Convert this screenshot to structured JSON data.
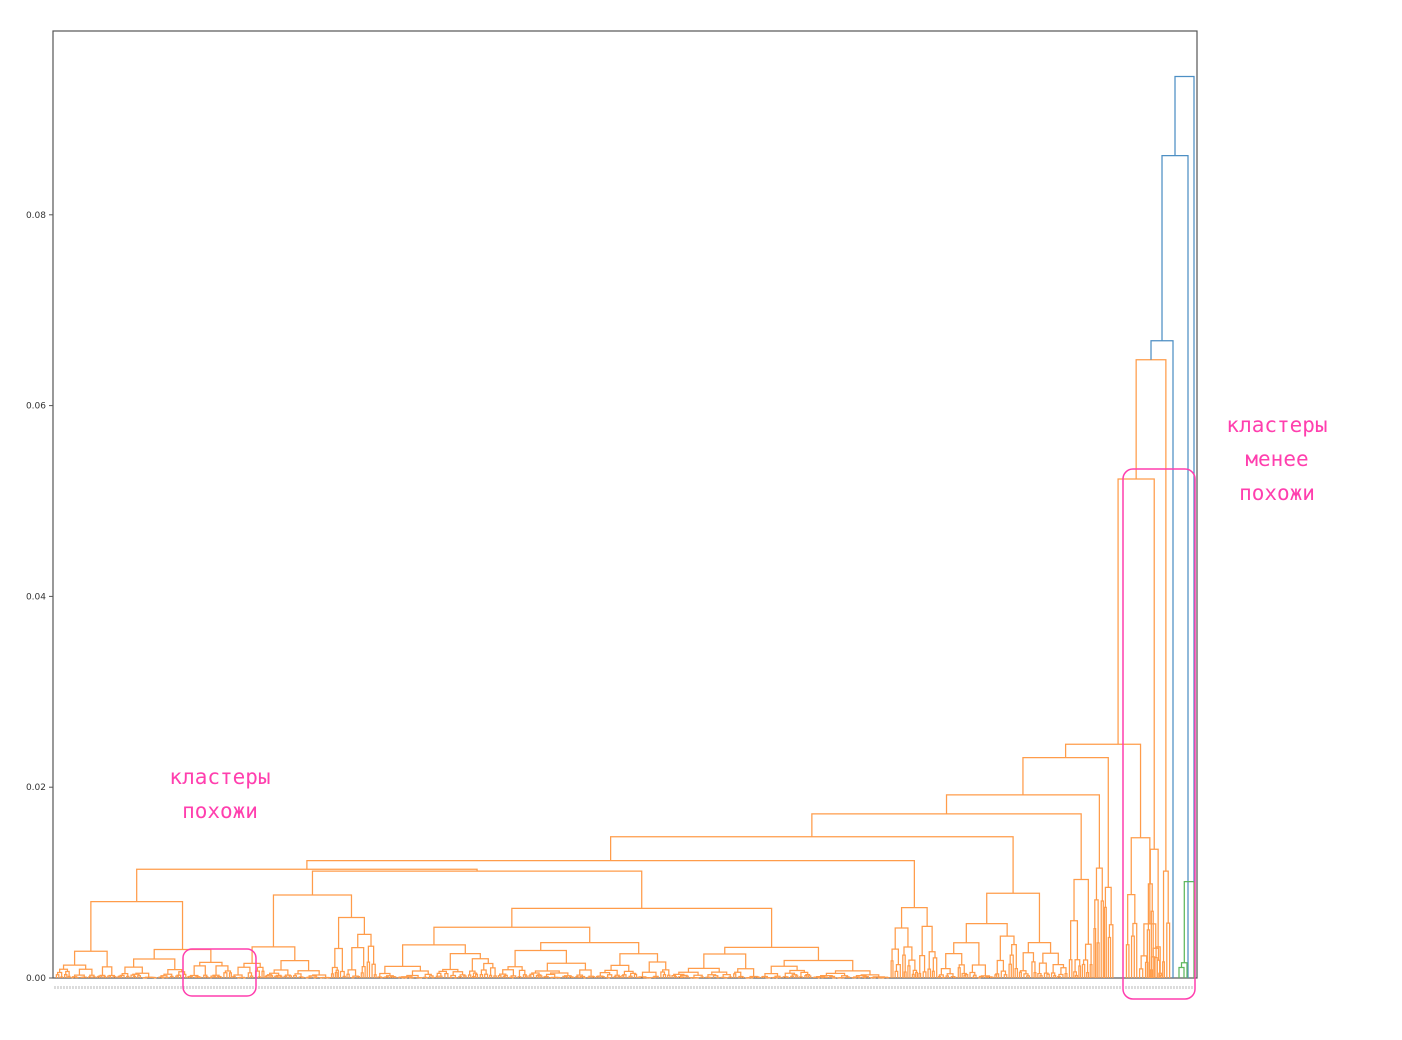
{
  "chart_data": {
    "type": "dendrogram",
    "title": "",
    "xlabel": "",
    "ylabel": "",
    "ylim": [
      0,
      0.1
    ],
    "yticks": [
      0.0,
      0.02,
      0.04,
      0.06,
      0.08
    ],
    "ytick_labels": [
      "0.00",
      "0.02",
      "0.04",
      "0.06",
      "0.08"
    ],
    "grid": false,
    "colors": {
      "orange": "#ff9c4a",
      "blue": "#4d8fc4",
      "green": "#5fb85f",
      "annotation": "#ff3fae"
    },
    "merges": {
      "root": 0.0945,
      "blue_upper": 0.0862,
      "blue_lower": 0.0668,
      "orange_top": 0.0648,
      "orange_main": 0.0523,
      "orange_secondary": 0.0245,
      "large_orange_group": 0.0231,
      "low_similarity_branch": 0.0112,
      "green_cluster": 0.0101,
      "typical_small_clusters": [
        0.002,
        0.004,
        0.006,
        0.008
      ]
    },
    "annotations": [
      {
        "text": "кластеры\nпохожи",
        "region": "bottom-left"
      },
      {
        "text": "кластеры\nменее\nпохожи",
        "region": "right"
      }
    ]
  }
}
